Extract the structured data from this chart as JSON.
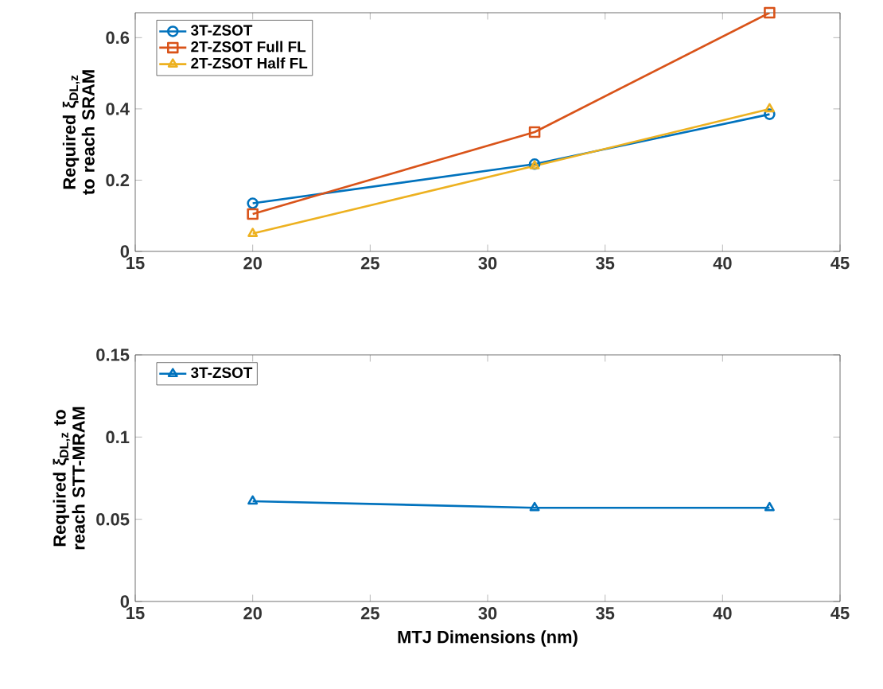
{
  "chart_data": [
    {
      "type": "line",
      "ylabel": "Required ξ$_{DL,z}$ to reach SRAM",
      "x": [
        20,
        32,
        42
      ],
      "xlim": [
        15,
        45
      ],
      "xticks": [
        15,
        20,
        25,
        30,
        35,
        40,
        45
      ],
      "ylim": [
        0,
        0.67
      ],
      "yticks": [
        0,
        0.2,
        0.4,
        0.6
      ],
      "legend": "top left",
      "grid": false,
      "line_style": "solid",
      "series": [
        {
          "name": "3T-ZSOT",
          "color": "#0072bd",
          "marker": "circle",
          "values": [
            0.135,
            0.245,
            0.385
          ]
        },
        {
          "name": "2T-ZSOT Full FL",
          "color": "#d95319",
          "marker": "square",
          "values": [
            0.105,
            0.335,
            0.67
          ]
        },
        {
          "name": "2T-ZSOT Half FL",
          "color": "#edb120",
          "marker": "triangle",
          "values": [
            0.05,
            0.24,
            0.4
          ]
        }
      ]
    },
    {
      "type": "line",
      "ylabel": "Required ξ$_{DL,z}$ to reach STT-MRAM",
      "xlabel": "MTJ Dimensions (nm)",
      "x": [
        20,
        32,
        42
      ],
      "xlim": [
        15,
        45
      ],
      "xticks": [
        15,
        20,
        25,
        30,
        35,
        40,
        45
      ],
      "ylim": [
        0,
        0.15
      ],
      "yticks": [
        0,
        0.05,
        0.1,
        0.15
      ],
      "legend": "top left",
      "grid": false,
      "line_style": "solid",
      "marker": "triangle",
      "series": [
        {
          "name": "3T-ZSOT",
          "color": "#0072bd",
          "values": [
            0.061,
            0.057,
            0.057
          ]
        }
      ]
    }
  ]
}
